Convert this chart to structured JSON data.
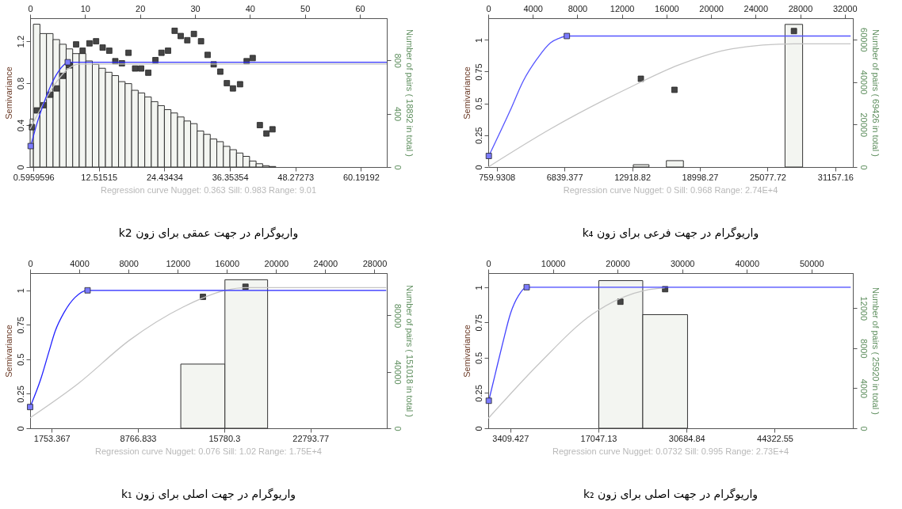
{
  "chart_data": [
    {
      "type": "scatter",
      "title": "واریوگرام در جهت عمقی برای زون k2",
      "annotations": [
        "Regression curve   Nugget: 0.363   Sill: 0.983   Range: 9.01"
      ],
      "ylabel": "Semivariance",
      "y2label": "Number of pairs   ( 18892 in total )",
      "xlim": [
        0,
        64.9
      ],
      "xticks": [
        0.5959596,
        12.51515,
        24.43434,
        36.35354,
        48.27273,
        60.19192
      ],
      "x2lim": [
        0,
        64.9
      ],
      "x2ticks": [
        0,
        10,
        20,
        30,
        40,
        50,
        60
      ],
      "ylim": [
        0,
        1.42
      ],
      "yticks": [
        0,
        0.4,
        0.8,
        1.2
      ],
      "y2lim": [
        0,
        1115
      ],
      "y2ticks": [
        0,
        400,
        800
      ],
      "series": [
        {
          "type": "histogram",
          "axis": "y2",
          "color": "#f3f5f1",
          "bins": [
            0,
            0.596,
            1.788,
            2.98,
            4.172,
            5.364,
            6.556,
            7.747,
            8.939,
            10.131,
            11.323,
            12.515,
            13.707,
            14.899,
            16.091,
            17.283,
            18.475,
            19.667,
            20.859,
            22.051,
            23.242,
            24.434,
            25.626,
            26.818,
            28.01,
            29.202,
            30.394,
            31.586,
            32.778,
            33.97,
            35.162,
            36.354,
            37.545,
            38.737,
            39.929,
            41.121,
            42.313,
            43.505,
            44.697
          ],
          "values": [
            360,
            1070,
            1000,
            1000,
            955,
            920,
            885,
            850,
            850,
            795,
            770,
            740,
            710,
            685,
            640,
            625,
            575,
            555,
            525,
            490,
            460,
            430,
            405,
            375,
            345,
            325,
            270,
            245,
            210,
            190,
            155,
            130,
            105,
            80,
            45,
            25,
            10,
            4
          ]
        },
        {
          "type": "scatter",
          "marker": "square",
          "color": "#454545",
          "x": [
            0.34,
            1.23,
            2.46,
            3.65,
            4.83,
            6.0,
            7.2,
            8.37,
            9.56,
            10.8,
            12.0,
            13.2,
            14.4,
            15.5,
            16.7,
            17.9,
            19.1,
            20.2,
            21.5,
            22.8,
            23.9,
            25.1,
            26.3,
            27.4,
            28.6,
            29.8,
            31.1,
            32.3,
            33.4,
            34.6,
            35.8,
            36.9,
            38.2,
            39.4,
            40.5,
            41.8,
            43.0,
            44.1
          ],
          "values": [
            0.38,
            0.54,
            0.59,
            0.69,
            0.75,
            0.87,
            0.97,
            1.17,
            1.11,
            1.18,
            1.2,
            1.14,
            1.11,
            1.01,
            0.99,
            1.09,
            0.94,
            0.94,
            0.9,
            1.02,
            1.09,
            1.11,
            1.3,
            1.25,
            1.21,
            1.27,
            1.2,
            1.07,
            0.98,
            0.91,
            0.8,
            0.75,
            0.79,
            1.01,
            1.04,
            0.4,
            0.32,
            0.36
          ]
        },
        {
          "type": "line",
          "color": "#c4c4c4",
          "x": [
            0,
            1,
            2,
            3,
            4,
            5,
            6,
            7,
            8,
            9.01,
            64.9
          ],
          "values": [
            0.363,
            0.466,
            0.566,
            0.661,
            0.749,
            0.826,
            0.891,
            0.94,
            0.972,
            0.983,
            0.983
          ]
        },
        {
          "type": "line",
          "color": "#3333ff",
          "x": [
            0.1,
            1.33,
            2.56,
            3.79,
            5.0,
            6.26,
            6.85,
            64.9
          ],
          "values": [
            0.2,
            0.43,
            0.62,
            0.78,
            0.9,
            0.98,
            1.0,
            1.0
          ]
        },
        {
          "type": "scatter",
          "marker": "square",
          "color": "#7b7bff",
          "x": [
            0.1,
            6.85
          ],
          "values": [
            0.2,
            1.0
          ]
        }
      ]
    },
    {
      "type": "scatter",
      "title": "واریوگرام در جهت فرعی برای زون k₄",
      "annotations": [
        "Regression curve   Nugget: 0   Sill: 0.968   Range: 2.74E+4"
      ],
      "ylabel": "Semivariance",
      "y2label": "Number of pairs   ( 69426 in total )",
      "xlim": [
        0,
        32730
      ],
      "xticks": [
        759.9308,
        6839.377,
        12918.82,
        18998.27,
        25077.72,
        31157.16
      ],
      "x2lim": [
        0,
        32730
      ],
      "x2ticks": [
        0,
        4000,
        8000,
        12000,
        16000,
        20000,
        24000,
        28000,
        32000
      ],
      "ylim": [
        0,
        1.17
      ],
      "yticks": [
        0,
        0.25,
        0.5,
        0.75,
        1
      ],
      "y2lim": [
        0,
        70000
      ],
      "y2ticks": [
        0,
        20000,
        40000,
        60000
      ],
      "series": [
        {
          "type": "histogram",
          "axis": "y2",
          "color": "#f3f5f1",
          "bins": [
            13020,
            14430,
            15990,
            17520,
            26640,
            28220
          ],
          "values": [
            1100,
            null,
            3000,
            null,
            67100
          ]
        },
        {
          "type": "scatter",
          "marker": "square",
          "color": "#454545",
          "x": [
            13700,
            16715,
            27440
          ],
          "values": [
            0.694,
            0.607,
            1.069
          ]
        },
        {
          "type": "line",
          "color": "#c4c4c4",
          "x": [
            0,
            5600,
            13140,
            17030,
            21900,
            27400,
            32530
          ],
          "values": [
            0,
            0.3,
            0.644,
            0.8,
            0.93,
            0.968,
            0.968
          ]
        },
        {
          "type": "line",
          "color": "#5555ff",
          "x": [
            50,
            1946,
            3163,
            4380,
            5596,
            6326,
            7056,
            32530
          ],
          "values": [
            0.087,
            0.44,
            0.68,
            0.85,
            0.977,
            1.011,
            1.03,
            1.03
          ]
        },
        {
          "type": "scatter",
          "marker": "square",
          "color": "#7b7bff",
          "x": [
            50,
            7056
          ],
          "values": [
            0.087,
            1.03
          ]
        }
      ]
    },
    {
      "type": "scatter",
      "title": "واریوگرام در جهت اصلی برای زون k₁",
      "annotations": [
        "Regression curve   Nugget: 0.076   Sill: 1.02   Range: 1.75E+4"
      ],
      "ylabel": "Semivariance",
      "y2label": "Number of pairs   ( 151018 in total )",
      "xlim": [
        0,
        29000
      ],
      "xticks": [
        1753.367,
        8766.833,
        15780.3,
        22793.77
      ],
      "x2lim": [
        0,
        29000
      ],
      "x2ticks": [
        0,
        4000,
        8000,
        12000,
        16000,
        20000,
        24000,
        28000
      ],
      "ylim": [
        0,
        1.125
      ],
      "yticks": [
        0,
        0.25,
        0.5,
        0.75,
        1
      ],
      "y2lim": [
        0,
        110000
      ],
      "y2ticks": [
        0,
        40000,
        80000
      ],
      "series": [
        {
          "type": "histogram",
          "axis": "y2",
          "color": "#f3f5f1",
          "bins": [
            12250,
            15840,
            19310
          ],
          "values": [
            45500,
            105300
          ]
        },
        {
          "type": "scatter",
          "marker": "square",
          "color": "#454545",
          "x": [
            14050,
            17510
          ],
          "values": [
            0.953,
            1.026
          ]
        },
        {
          "type": "line",
          "color": "#c4c4c4",
          "x": [
            0,
            3854,
            8136,
            12418,
            15840,
            17500,
            28950
          ],
          "values": [
            0.076,
            0.32,
            0.642,
            0.878,
            1.0,
            1.02,
            1.02
          ]
        },
        {
          "type": "line",
          "color": "#2222ff",
          "x": [
            0,
            856,
            1500,
            2034,
            2783,
            3640,
            4670,
            28950
          ],
          "values": [
            0.154,
            0.354,
            0.546,
            0.703,
            0.843,
            0.948,
            1.0,
            1.0
          ]
        },
        {
          "type": "scatter",
          "marker": "square",
          "color": "#7b7bff",
          "x": [
            0,
            4670
          ],
          "values": [
            0.154,
            1.0
          ]
        }
      ]
    },
    {
      "type": "scatter",
      "title": "واریوگرام در جهت اصلی برای زون k₂",
      "annotations": [
        "Regression curve   Nugget: 0.0732   Sill: 0.995   Range: 2.73E+4"
      ],
      "ylabel": "Semivariance",
      "y2label": "Number of pairs   ( 25920 in total )",
      "xlim": [
        0,
        56400
      ],
      "xticks": [
        3409.427,
        17047.13,
        30684.84,
        44322.55
      ],
      "x2lim": [
        0,
        56400
      ],
      "x2ticks": [
        0,
        10000,
        20000,
        30000,
        40000,
        50000
      ],
      "ylim": [
        0,
        1.1
      ],
      "yticks": [
        0,
        0.25,
        0.5,
        0.75,
        1
      ],
      "y2lim": [
        0,
        15500
      ],
      "y2ticks": [
        0,
        4000,
        8000,
        12000
      ],
      "series": [
        {
          "type": "histogram",
          "axis": "y2",
          "color": "#f3f5f1",
          "bins": [
            17100,
            23900,
            30830
          ],
          "values": [
            14750,
            11350
          ]
        },
        {
          "type": "scatter",
          "marker": "square",
          "color": "#454545",
          "x": [
            20440,
            27360
          ],
          "values": [
            0.897,
            0.986
          ]
        },
        {
          "type": "line",
          "color": "#c4c4c4",
          "x": [
            0,
            7940,
            16080,
            24230,
            27300
          ],
          "values": [
            0.07,
            0.462,
            0.808,
            0.977,
            0.995
          ]
        },
        {
          "type": "line",
          "color": "#4444ff",
          "x": [
            80,
            1018,
            2240,
            3461,
            4683,
            5945,
            56070
          ],
          "values": [
            0.195,
            0.373,
            0.604,
            0.817,
            0.941,
            1.0,
            1.0
          ]
        },
        {
          "type": "scatter",
          "marker": "square",
          "color": "#7b7bff",
          "x": [
            80,
            5945
          ],
          "values": [
            0.195,
            1.0
          ]
        }
      ]
    }
  ]
}
